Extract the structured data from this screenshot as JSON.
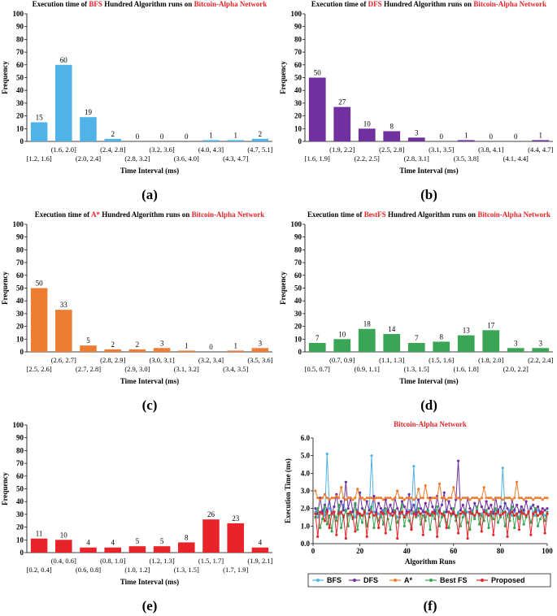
{
  "colors": {
    "bfs": "#4fb3e8",
    "dfs": "#7030a0",
    "astar": "#ed7d31",
    "bestfs": "#3aa655",
    "proposed": "#e8232a",
    "title_red": "#e8232a"
  },
  "chart_data": [
    {
      "panel_label": "(a)",
      "type": "bar",
      "title": {
        "prefix": "Execution time of ",
        "algo": "BFS",
        "middle": " Hundred Algorithm runs on ",
        "network": "Bitcoin-Alpha Network"
      },
      "xlabel": "Time Interval (ms)",
      "ylabel": "Frequency",
      "ylim": [
        0,
        100
      ],
      "yticks": [
        0,
        10,
        20,
        30,
        40,
        50,
        60,
        70,
        80,
        90,
        100
      ],
      "color_key": "bfs",
      "categories": [
        "[1.2, 1.6]",
        "(1.6, 2.0]",
        "(2.0, 2.4]",
        "(2.4, 2.8]",
        "(2.8, 3.2]",
        "(3.2, 3.6]",
        "(3.6, 4.0]",
        "(4.0, 4.3]",
        "(4.3, 4.7]",
        "(4.7, 5.1]"
      ],
      "values": [
        15,
        60,
        19,
        2,
        0,
        0,
        0,
        1,
        1,
        2
      ]
    },
    {
      "panel_label": "(b)",
      "type": "bar",
      "title": {
        "prefix": "Execution time of ",
        "algo": "DFS",
        "middle": " Hundred Algorithm runs on ",
        "network": "Bitcoin-Alpha Network"
      },
      "xlabel": "Time Interval (ms)",
      "ylabel": "Frequency",
      "ylim": [
        0,
        100
      ],
      "yticks": [
        0,
        10,
        20,
        30,
        40,
        50,
        60,
        70,
        80,
        90,
        100
      ],
      "color_key": "dfs",
      "categories": [
        "[1.6, 1.9]",
        "(1.9, 2.2]",
        "(2.2, 2.5]",
        "(2.5, 2.8]",
        "(2.8, 3.1]",
        "(3.1, 3.5]",
        "(3.5, 3.8]",
        "(3.8, 4.1]",
        "(4.1, 4.4]",
        "(4.4, 4.7]"
      ],
      "values": [
        50,
        27,
        10,
        8,
        3,
        0,
        1,
        0,
        0,
        1
      ]
    },
    {
      "panel_label": "(c)",
      "type": "bar",
      "title": {
        "prefix": "Execution time of ",
        "algo": "A*",
        "middle": " Hundred Algorithm runs on ",
        "network": "Bitcoin-Alpha Network"
      },
      "xlabel": "Time Interval (ms)",
      "ylabel": "Frequency",
      "ylim": [
        0,
        100
      ],
      "yticks": [
        0,
        10,
        20,
        30,
        40,
        50,
        60,
        70,
        80,
        90,
        100
      ],
      "color_key": "astar",
      "categories": [
        "[2.5, 2.6]",
        "(2.6, 2.7]",
        "(2.7, 2.8]",
        "(2.8, 2.9]",
        "(2.9, 3.0]",
        "(3.0, 3.1]",
        "(3.1, 3.2]",
        "(3.2, 3.4]",
        "(3.4, 3.5]",
        "(3.5, 3.6]"
      ],
      "values": [
        50,
        33,
        5,
        2,
        2,
        3,
        1,
        0,
        1,
        3
      ]
    },
    {
      "panel_label": "(d)",
      "type": "bar",
      "title": {
        "prefix": "Execution time of ",
        "algo": "BestFS",
        "middle": " Hundred Algorithm runs on ",
        "network": "Bitcoin-Alpha Network"
      },
      "xlabel": "Time Interval (ms)",
      "ylabel": "Frequency",
      "ylim": [
        0,
        100
      ],
      "yticks": [
        0,
        10,
        20,
        30,
        40,
        50,
        60,
        70,
        80,
        90,
        100
      ],
      "color_key": "bestfs",
      "categories": [
        "[0.5, 0.7]",
        "(0.7, 0.9]",
        "(0.9, 1.1]",
        "(1.1, 1.3]",
        "(1.3, 1.5]",
        "(1.5, 1.6]",
        "(1.6, 1.8]",
        "(1.8, 2.0]",
        "(2.0, 2.2]",
        "(2.2, 2.4]"
      ],
      "values": [
        7,
        10,
        18,
        14,
        7,
        8,
        13,
        17,
        3,
        3
      ]
    },
    {
      "panel_label": "(e)",
      "type": "bar",
      "xlabel": "Time Interval (ms)",
      "ylabel": "Frequency",
      "ylim": [
        0,
        100
      ],
      "yticks": [
        0,
        10,
        20,
        30,
        40,
        50,
        60,
        70,
        80,
        90,
        100
      ],
      "color_key": "proposed",
      "categories": [
        "[0.2, 0.4]",
        "(0.4, 0.6]",
        "(0.6, 0.8]",
        "(0.8, 1.0]",
        "(1.0, 1.2]",
        "(1.2, 1.3]",
        "(1.3, 1.5]",
        "(1.5, 1.7]",
        "(1.7, 1.9]",
        "(1.9, 2.1]"
      ],
      "values": [
        11,
        10,
        4,
        4,
        5,
        5,
        8,
        26,
        23,
        4
      ]
    },
    {
      "panel_label": "(f)",
      "type": "line",
      "title": "Bitcoin-Alpha Network",
      "xlabel": "Algorithm Runs",
      "ylabel": "Execution Time (ms)",
      "xlim": [
        0,
        100
      ],
      "ylim": [
        0,
        6
      ],
      "xticks": [
        0,
        20,
        40,
        60,
        80,
        100
      ],
      "yticks": [
        0.0,
        1.0,
        2.0,
        3.0,
        4.0,
        5.0,
        6.0
      ],
      "legend_position": "bottom",
      "series": [
        {
          "name": "BFS",
          "color_key": "bfs",
          "values": [
            1.8,
            1.5,
            1.7,
            1.9,
            1.6,
            5.1,
            2.0,
            1.7,
            1.6,
            1.5,
            1.8,
            1.7,
            2.2,
            1.9,
            1.6,
            1.7,
            1.8,
            1.5,
            1.9,
            1.7,
            1.6,
            1.8,
            1.7,
            1.9,
            5.0,
            1.8,
            1.6,
            1.7,
            1.5,
            1.9,
            1.7,
            1.8,
            1.6,
            1.9,
            1.7,
            1.5,
            1.8,
            1.7,
            1.6,
            1.8,
            1.9,
            1.7,
            4.4,
            1.8,
            1.6,
            1.7,
            1.9,
            1.5,
            1.8,
            1.7,
            1.6,
            1.9,
            1.7,
            1.8,
            1.6,
            1.7,
            1.9,
            1.8,
            1.6,
            1.7,
            1.5,
            1.8,
            1.9,
            1.7,
            1.6,
            1.8,
            1.7,
            1.9,
            1.5,
            1.8,
            1.6,
            1.7,
            1.9,
            1.8,
            1.7,
            1.6,
            1.8,
            1.9,
            1.7,
            1.6,
            4.3,
            1.8,
            1.7,
            1.9,
            1.6,
            1.8,
            1.7,
            1.5,
            1.9,
            1.8,
            1.6,
            1.7,
            2.1,
            1.8,
            1.6,
            1.9,
            1.7,
            1.8,
            1.6,
            1.7
          ]
        },
        {
          "name": "DFS",
          "color_key": "dfs",
          "values": [
            2.0,
            1.7,
            2.6,
            1.8,
            2.2,
            1.9,
            2.5,
            1.7,
            2.1,
            2.8,
            1.8,
            2.4,
            1.9,
            3.5,
            2.0,
            2.6,
            1.8,
            2.2,
            1.7,
            2.9,
            2.0,
            1.8,
            2.4,
            1.9,
            2.1,
            2.7,
            1.8,
            2.3,
            2.0,
            1.7,
            2.5,
            1.9,
            2.2,
            1.8,
            2.6,
            2.0,
            1.7,
            2.4,
            2.1,
            1.8,
            2.8,
            1.9,
            2.2,
            1.7,
            2.5,
            2.0,
            1.8,
            2.3,
            1.9,
            2.6,
            2.1,
            1.8,
            2.7,
            1.9,
            2.2,
            2.9,
            1.8,
            2.4,
            2.0,
            1.7,
            2.5,
            4.7,
            1.9,
            2.2,
            1.8,
            2.6,
            2.0,
            1.7,
            2.3,
            1.9,
            2.5,
            2.1,
            1.8,
            2.4,
            2.0,
            2.2,
            1.7,
            2.6,
            1.9,
            2.1,
            1.8,
            2.3,
            2.0,
            1.7,
            2.5,
            1.9,
            2.2,
            1.8,
            2.1,
            1.9,
            2.4,
            1.8,
            2.0,
            2.2,
            1.9,
            2.1,
            1.8,
            2.0,
            1.9,
            2.0
          ]
        },
        {
          "name": "A*",
          "color_key": "astar",
          "values": [
            3.0,
            2.6,
            2.5,
            2.6,
            2.8,
            2.6,
            2.5,
            2.6,
            2.6,
            2.7,
            2.6,
            3.2,
            2.6,
            2.5,
            2.6,
            2.6,
            2.5,
            2.6,
            3.1,
            2.6,
            2.6,
            2.5,
            2.6,
            2.6,
            2.6,
            2.5,
            2.6,
            2.6,
            2.6,
            2.5,
            2.6,
            2.6,
            2.6,
            2.5,
            2.6,
            3.0,
            2.6,
            2.6,
            2.5,
            2.6,
            2.6,
            2.6,
            2.5,
            2.6,
            3.1,
            2.6,
            2.6,
            3.3,
            2.6,
            2.5,
            2.6,
            2.6,
            2.6,
            3.4,
            2.6,
            2.6,
            2.5,
            2.6,
            2.6,
            3.2,
            2.6,
            2.6,
            2.5,
            2.6,
            2.6,
            2.6,
            2.5,
            2.6,
            2.6,
            2.6,
            2.5,
            2.6,
            3.2,
            2.6,
            2.6,
            2.6,
            2.5,
            2.6,
            2.6,
            2.6,
            2.5,
            2.6,
            2.6,
            2.6,
            2.5,
            2.6,
            3.5,
            2.6,
            2.6,
            2.5,
            2.6,
            2.6,
            2.6,
            2.5,
            2.6,
            2.6,
            2.6,
            2.5,
            2.6,
            2.6
          ]
        },
        {
          "name": "Best FS",
          "color_key": "bestfs",
          "values": [
            1.5,
            2.0,
            0.9,
            1.4,
            2.1,
            1.1,
            1.6,
            0.7,
            1.8,
            1.3,
            2.2,
            0.9,
            1.5,
            1.9,
            1.0,
            1.7,
            1.4,
            2.3,
            0.8,
            1.6,
            1.2,
            1.9,
            1.0,
            1.5,
            2.1,
            0.9,
            1.7,
            1.3,
            1.8,
            1.1,
            2.0,
            1.4,
            0.8,
            1.6,
            1.9,
            1.2,
            1.5,
            2.2,
            1.0,
            1.7,
            1.3,
            0.9,
            1.8,
            1.5,
            2.0,
            1.1,
            1.6,
            1.3,
            1.9,
            0.8,
            1.7,
            1.4,
            2.1,
            1.0,
            1.5,
            1.8,
            1.2,
            0.9,
            1.6,
            2.0,
            1.3,
            1.7,
            1.0,
            1.5,
            1.9,
            1.2,
            0.8,
            1.8,
            1.4,
            2.1,
            1.1,
            1.6,
            1.3,
            1.9,
            0.9,
            1.7,
            1.4,
            2.0,
            1.2,
            1.5,
            1.8,
            1.0,
            1.6,
            1.3,
            2.1,
            0.9,
            1.7,
            1.4,
            1.9,
            1.1,
            1.5,
            1.8,
            1.2,
            1.6,
            2.0,
            1.0,
            1.4,
            1.7,
            1.3,
            1.8
          ]
        },
        {
          "name": "Proposed",
          "color_key": "proposed",
          "values": [
            1.7,
            0.4,
            1.8,
            1.7,
            1.3,
            1.8,
            0.9,
            1.7,
            1.8,
            0.5,
            1.7,
            1.8,
            1.6,
            0.3,
            1.7,
            1.8,
            1.5,
            0.7,
            1.8,
            1.7,
            1.6,
            1.8,
            0.4,
            1.7,
            1.8,
            1.6,
            1.7,
            0.9,
            1.8,
            1.7,
            0.6,
            1.8,
            1.7,
            1.6,
            1.8,
            0.3,
            1.7,
            1.8,
            1.5,
            1.7,
            1.8,
            0.8,
            1.7,
            1.6,
            1.8,
            1.7,
            0.5,
            1.8,
            1.7,
            1.6,
            1.8,
            1.7,
            0.4,
            1.8,
            1.7,
            1.6,
            0.9,
            1.8,
            1.7,
            1.8,
            1.6,
            0.6,
            1.7,
            1.8,
            1.7,
            0.3,
            1.8,
            1.7,
            1.6,
            1.8,
            1.7,
            0.7,
            1.8,
            1.7,
            1.6,
            1.8,
            0.5,
            1.7,
            1.8,
            1.6,
            1.7,
            1.8,
            0.4,
            1.7,
            1.8,
            1.6,
            1.7,
            0.8,
            1.8,
            1.7,
            1.6,
            1.8,
            0.5,
            1.7,
            1.8,
            1.6,
            1.7,
            1.8,
            0.6,
            1.7
          ]
        }
      ]
    }
  ]
}
